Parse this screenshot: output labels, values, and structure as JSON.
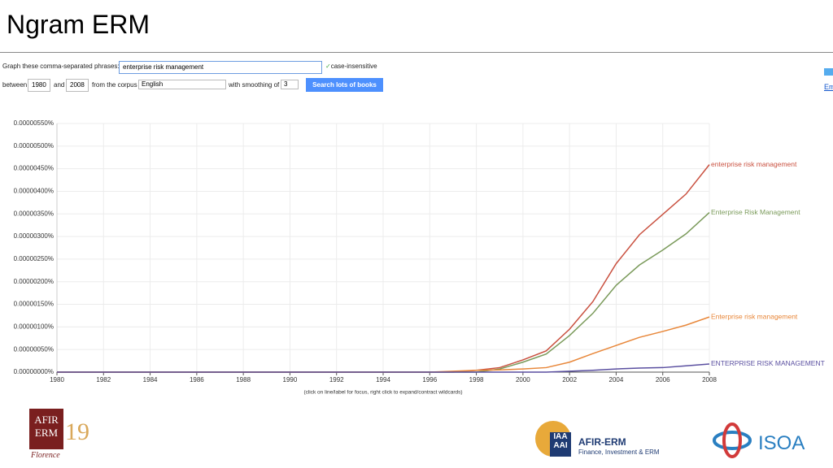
{
  "slide_title": "Ngram ERM",
  "form": {
    "phrases_label": "Graph these comma-separated phrases:",
    "phrases_value": "enterprise risk management",
    "case_label": "case-insensitive",
    "between_label": "between",
    "start_year": "1980",
    "and_label": "and",
    "end_year": "2008",
    "corpus_label": "from the corpus",
    "corpus_value": "English",
    "smoothing_label": "with smoothing of",
    "smoothing_value": "3",
    "search_button": "Search lots of books",
    "side_link": "Em"
  },
  "chart_data": {
    "type": "line",
    "x": [
      1980,
      1981,
      1982,
      1983,
      1984,
      1985,
      1986,
      1987,
      1988,
      1989,
      1990,
      1991,
      1992,
      1993,
      1994,
      1995,
      1996,
      1997,
      1998,
      1999,
      2000,
      2001,
      2002,
      2003,
      2004,
      2005,
      2006,
      2007,
      2008
    ],
    "xlim": [
      1980,
      2008
    ],
    "xticks": [
      1980,
      1982,
      1984,
      1986,
      1988,
      1990,
      1992,
      1994,
      1996,
      1998,
      2000,
      2002,
      2004,
      2006,
      2008
    ],
    "ylim": [
      0,
      5.5e-06
    ],
    "yticks": [
      {
        "value": 0,
        "label": "0.00000000%"
      },
      {
        "value": 5e-07,
        "label": "0.00000050%"
      },
      {
        "value": 1e-06,
        "label": "0.00000100%"
      },
      {
        "value": 1.5e-06,
        "label": "0.00000150%"
      },
      {
        "value": 2e-06,
        "label": "0.00000200%"
      },
      {
        "value": 2.5e-06,
        "label": "0.00000250%"
      },
      {
        "value": 3e-06,
        "label": "0.00000300%"
      },
      {
        "value": 3.5e-06,
        "label": "0.00000350%"
      },
      {
        "value": 4e-06,
        "label": "0.00000400%"
      },
      {
        "value": 4.5e-06,
        "label": "0.00000450%"
      },
      {
        "value": 5e-06,
        "label": "0.00000500%"
      },
      {
        "value": 5.5e-06,
        "label": "0.00000550%"
      }
    ],
    "grid": true,
    "series": [
      {
        "name": "enterprise risk management",
        "color": "#c9503f",
        "values": [
          0,
          0,
          0,
          0,
          0,
          0,
          0,
          0,
          0,
          0,
          0,
          0,
          0,
          0,
          0,
          0,
          0,
          0,
          4e-08,
          1e-07,
          2.7e-07,
          4.7e-07,
          9.5e-07,
          1.56e-06,
          2.4e-06,
          3.04e-06,
          3.49e-06,
          3.94e-06,
          4.59e-06
        ]
      },
      {
        "name": "Enterprise Risk Management",
        "color": "#7a9a5a",
        "values": [
          0,
          0,
          0,
          0,
          0,
          0,
          0,
          0,
          0,
          0,
          0,
          0,
          0,
          0,
          0,
          0,
          0,
          0,
          0,
          7e-08,
          2.2e-07,
          4e-07,
          8.1e-07,
          1.3e-06,
          1.92e-06,
          2.37e-06,
          2.7e-06,
          3.06e-06,
          3.53e-06
        ]
      },
      {
        "name": "Enterprise risk management",
        "color": "#e8873a",
        "values": [
          0,
          0,
          0,
          0,
          0,
          0,
          0,
          0,
          0,
          0,
          0,
          0,
          0,
          0,
          0,
          0,
          0,
          2e-08,
          4e-08,
          5e-08,
          7e-08,
          1e-07,
          2.2e-07,
          4.1e-07,
          5.9e-07,
          7.7e-07,
          9e-07,
          1.04e-06,
          1.22e-06
        ]
      },
      {
        "name": "ENTERPRISE RISK MANAGEMENT",
        "color": "#5a4fa0",
        "values": [
          0,
          0,
          0,
          0,
          0,
          0,
          0,
          0,
          0,
          0,
          0,
          0,
          0,
          0,
          0,
          0,
          0,
          0,
          0,
          0,
          0,
          0,
          2e-08,
          4e-08,
          7e-08,
          9e-08,
          1e-07,
          1.4e-07,
          1.8e-07
        ]
      }
    ],
    "caption": "(click on line/label for focus, right click to expand/contract wildcards)"
  },
  "logos": {
    "afir_top": "AFIR",
    "afir_mid": "ERM",
    "afir_year": "19",
    "afir_city": "Florence",
    "iaa_top": "IAA",
    "iaa_bottom": "AAI",
    "afir_erm": "AFIR-ERM",
    "afir_erm_sub": "Finance, Investment & ERM",
    "isoa": "ISOA"
  }
}
